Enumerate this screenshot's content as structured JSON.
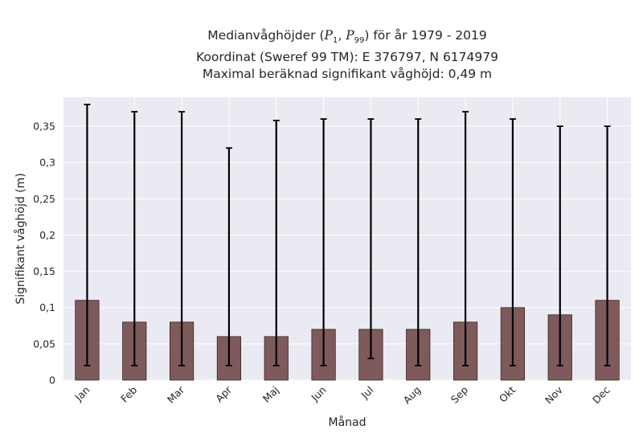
{
  "chart_data": {
    "type": "bar",
    "title": [
      "Medianvåghöjder (P1, P99) för år 1979 - 2019",
      "Koordinat (Sweref 99 TM): E 376797, N 6174979",
      "Maximal beräknad signifikant våghöjd: 0,49 m"
    ],
    "xlabel": "Månad",
    "ylabel": "Signifikant våghöjd (m)",
    "categories": [
      "Jan",
      "Feb",
      "Mar",
      "Apr",
      "Maj",
      "Jun",
      "Jul",
      "Aug",
      "Sep",
      "Okt",
      "Nov",
      "Dec"
    ],
    "values": [
      0.11,
      0.08,
      0.08,
      0.06,
      0.06,
      0.07,
      0.07,
      0.07,
      0.08,
      0.1,
      0.09,
      0.11
    ],
    "error_low": [
      0.02,
      0.02,
      0.02,
      0.02,
      0.02,
      0.02,
      0.03,
      0.02,
      0.02,
      0.02,
      0.02,
      0.02
    ],
    "error_high": [
      0.38,
      0.37,
      0.37,
      0.32,
      0.358,
      0.36,
      0.36,
      0.36,
      0.37,
      0.36,
      0.35,
      0.35
    ],
    "ylim": [
      0,
      0.39
    ],
    "yticks": [
      0,
      0.05,
      0.1,
      0.15,
      0.2,
      0.25,
      0.3,
      0.35
    ],
    "ytick_labels": [
      "0",
      "0,05",
      "0,1",
      "0,15",
      "0,2",
      "0,25",
      "0,3",
      "0,35"
    ],
    "grid": true,
    "bar_color": "#7f5a5a",
    "bar_edge_color": "#3a2525",
    "errorbar_color": "#000000",
    "plot_background": "#eaeaf2",
    "grid_color": "#ffffff"
  }
}
